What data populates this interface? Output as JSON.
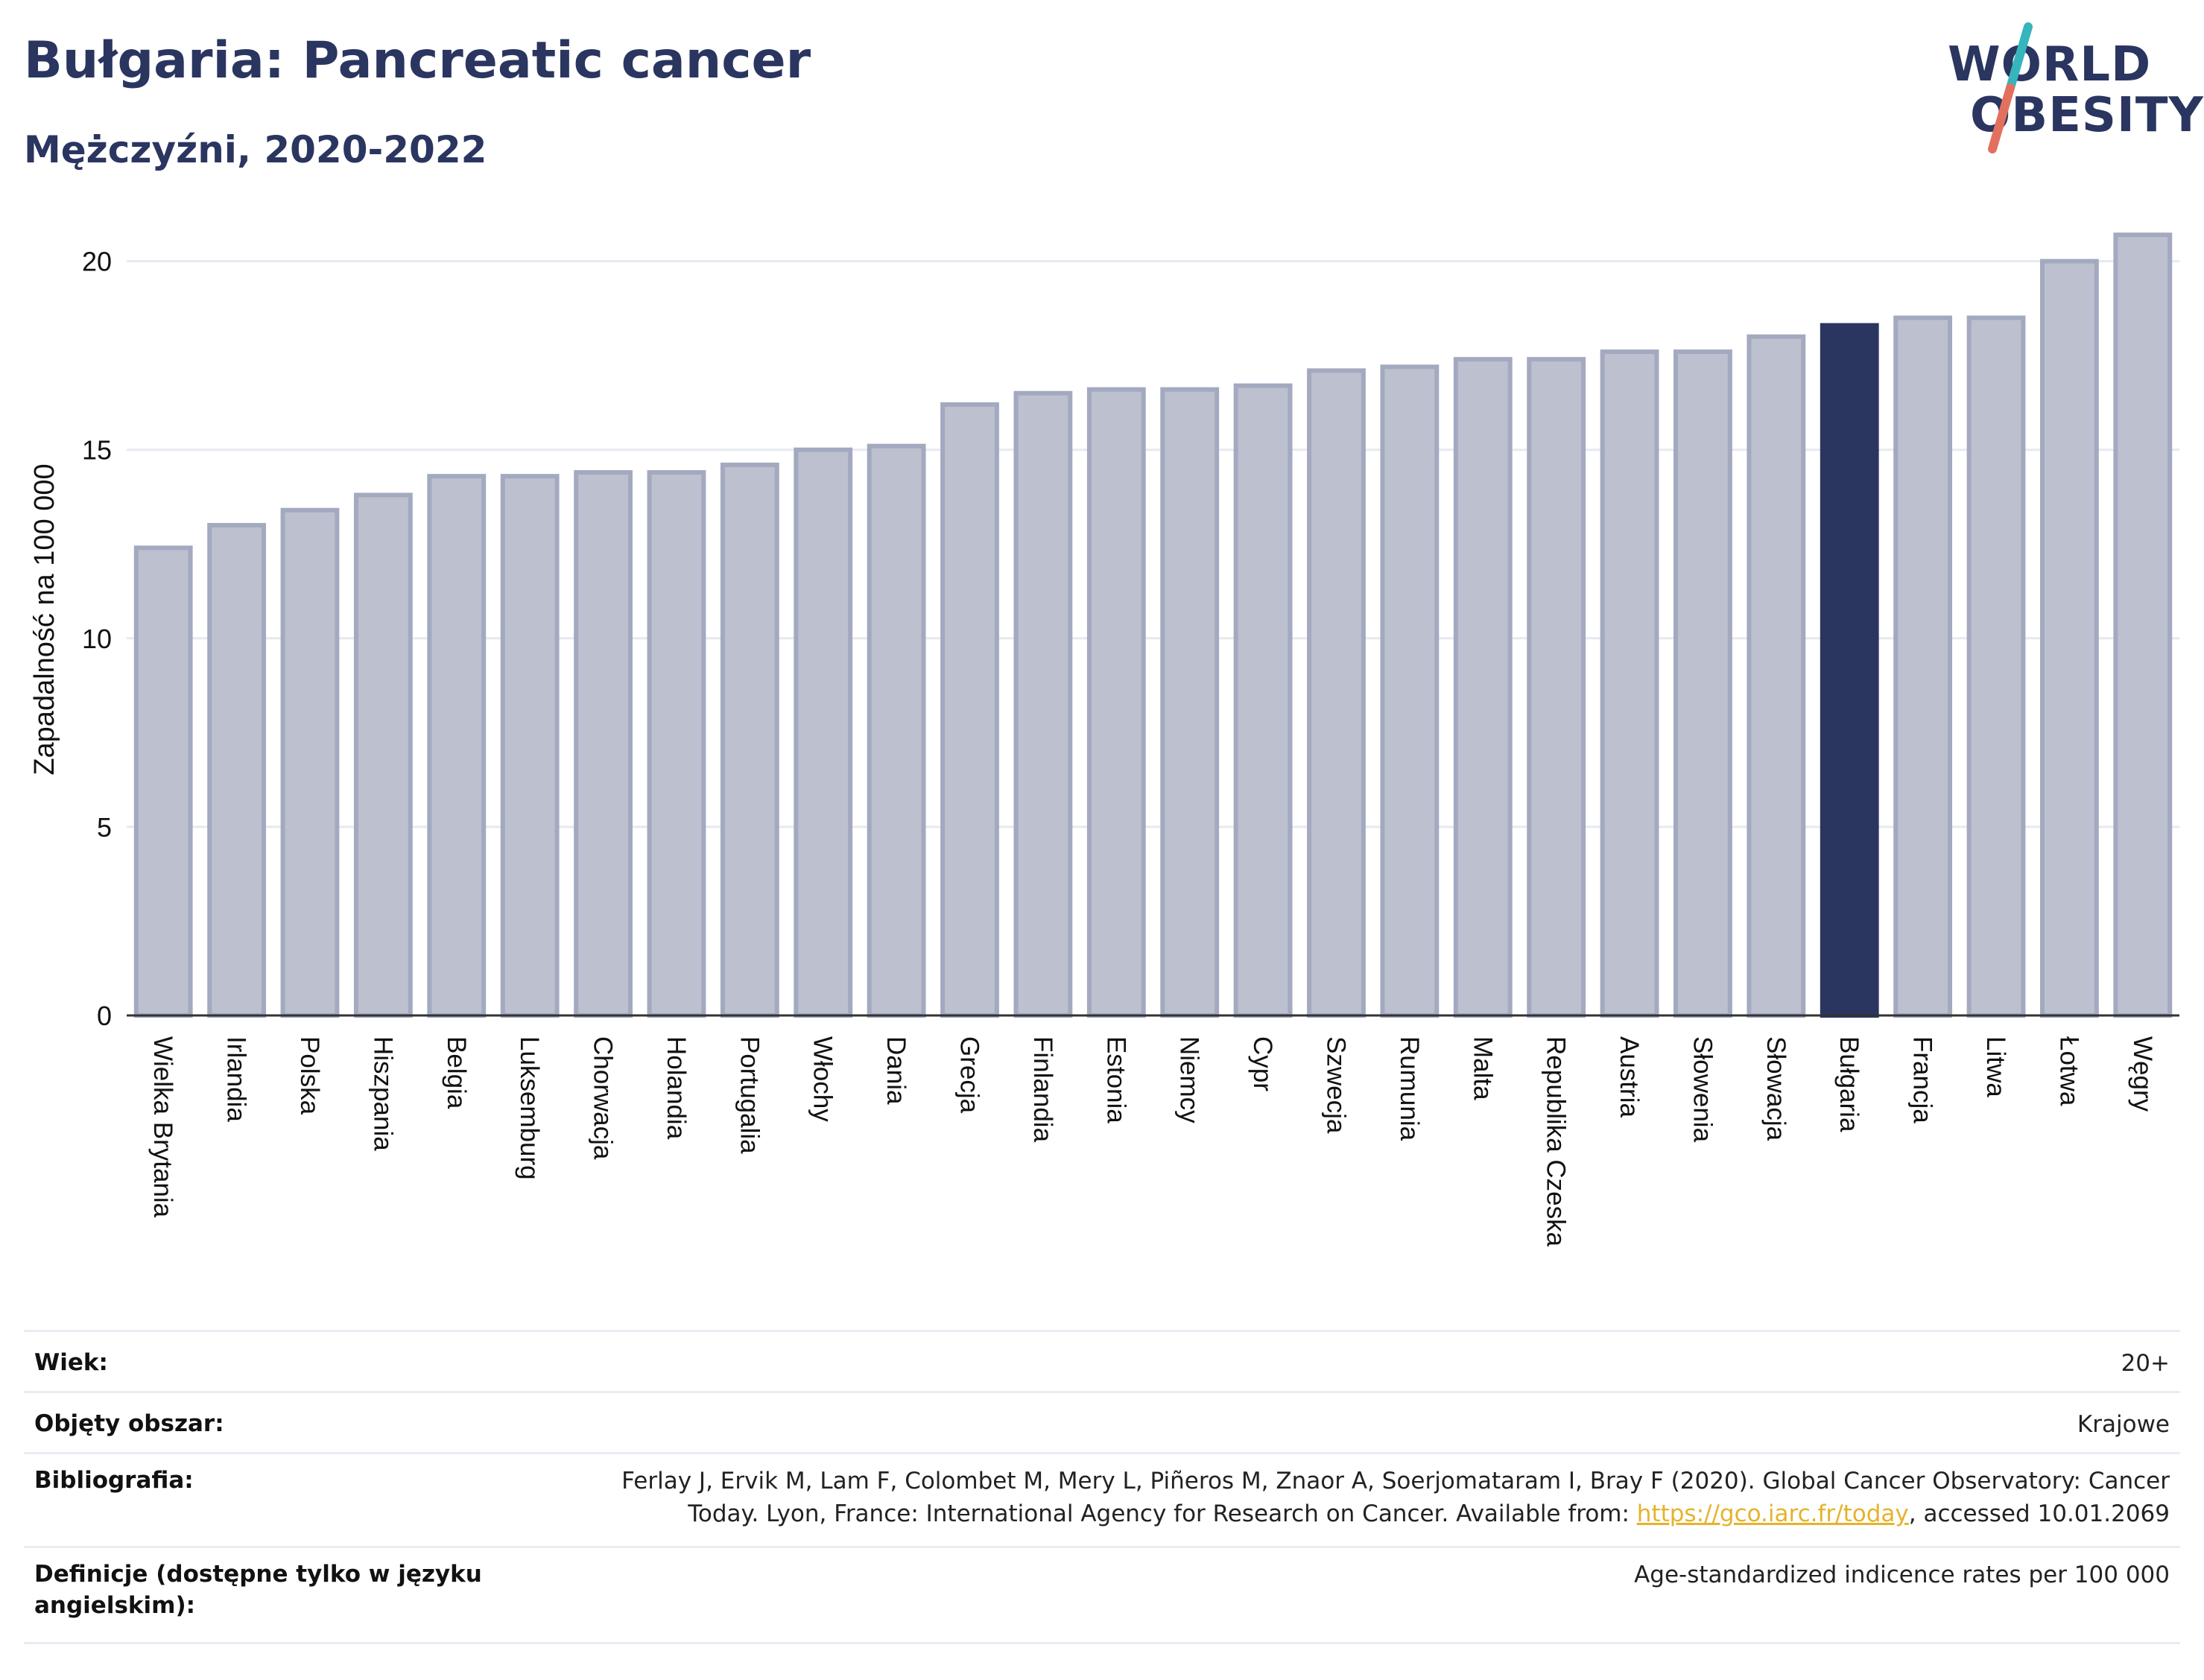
{
  "header": {
    "title": "Bułgaria: Pancreatic cancer",
    "subtitle": "Mężczyźni, 2020-2022"
  },
  "logo": {
    "line1": "WORLD",
    "line2": "OBESITY",
    "icon": "world-obesity-logo"
  },
  "colors": {
    "bar": "#bcc0cf",
    "bar_border": "#a3a9bf",
    "highlight": "#2a3560",
    "title": "#2a3560",
    "logo_teal": "#36b5bd",
    "logo_coral": "#e3705e",
    "link": "#e5b32b"
  },
  "chart_data": {
    "type": "bar",
    "ylabel": "Zapadalność na 100 000",
    "xlabel": "",
    "ylim": [
      0,
      21
    ],
    "yticks": [
      0,
      5,
      10,
      15,
      20
    ],
    "grid": true,
    "highlight": "Bułgaria",
    "categories": [
      "Wielka Brytania",
      "Irlandia",
      "Polska",
      "Hiszpania",
      "Belgia",
      "Luksemburg",
      "Chorwacja",
      "Holandia",
      "Portugalia",
      "Włochy",
      "Dania",
      "Grecja",
      "Finlandia",
      "Estonia",
      "Niemcy",
      "Cypr",
      "Szwecja",
      "Rumunia",
      "Malta",
      "Republika Czeska",
      "Austria",
      "Słowenia",
      "Słowacja",
      "Bułgaria",
      "Francja",
      "Litwa",
      "Łotwa",
      "Węgry"
    ],
    "values": [
      12.4,
      13.0,
      13.4,
      13.8,
      14.3,
      14.3,
      14.4,
      14.4,
      14.6,
      15.0,
      15.1,
      16.2,
      16.5,
      16.6,
      16.6,
      16.7,
      17.1,
      17.2,
      17.4,
      17.4,
      17.6,
      17.6,
      18.0,
      18.3,
      18.5,
      18.5,
      20.0,
      20.7
    ]
  },
  "meta": {
    "rows": [
      {
        "label": "Wiek:",
        "value": "20+"
      },
      {
        "label": "Objęty obszar:",
        "value": "Krajowe"
      },
      {
        "label": "Bibliografia:",
        "value_line1": "Ferlay J, Ervik M, Lam F, Colombet M, Mery L, Piñeros M, Znaor A, Soerjomataram I, Bray F (2020). Global Cancer Observatory: Cancer",
        "value_line2_pre": "Today. Lyon, France: International Agency for Research on Cancer. Available from: ",
        "value_link": "https://gco.iarc.fr/today",
        "value_line2_post": ", accessed 10.01.2069"
      },
      {
        "label_line1": "Definicje (dostępne tylko w języku",
        "label_line2": "angielskim):",
        "value": "Age-standardized indicence rates per 100 000"
      }
    ]
  }
}
